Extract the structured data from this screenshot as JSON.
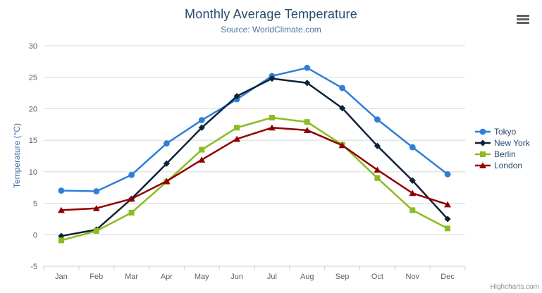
{
  "header": {
    "title": "Monthly Average Temperature",
    "subtitle": "Source: WorldClimate.com"
  },
  "credits": {
    "label": "Highcharts.com"
  },
  "colors": {
    "title": "#274b6d",
    "subtitle": "#4d759e",
    "axis_label": "#606060",
    "y_axis_title": "#4572a7",
    "gridline": "#d8d8d8",
    "axis_line": "#c0d0e0",
    "legend_text": "#274b6d"
  },
  "chart_data": {
    "type": "line",
    "title": "Monthly Average Temperature",
    "subtitle": "Source: WorldClimate.com",
    "xlabel": "",
    "ylabel": "Temperature (°C)",
    "categories": [
      "Jan",
      "Feb",
      "Mar",
      "Apr",
      "May",
      "Jun",
      "Jul",
      "Aug",
      "Sep",
      "Oct",
      "Nov",
      "Dec"
    ],
    "ylim": [
      -5,
      30
    ],
    "ytick_interval": 5,
    "grid": true,
    "legend_position": "right",
    "series": [
      {
        "name": "Tokyo",
        "color": "#2f7ed8",
        "marker": "circle",
        "values": [
          7.0,
          6.9,
          9.5,
          14.5,
          18.2,
          21.5,
          25.2,
          26.5,
          23.3,
          18.3,
          13.9,
          9.6
        ]
      },
      {
        "name": "New York",
        "color": "#0d233a",
        "marker": "diamond",
        "values": [
          -0.2,
          0.8,
          5.7,
          11.3,
          17.0,
          22.0,
          24.8,
          24.1,
          20.1,
          14.1,
          8.6,
          2.5
        ]
      },
      {
        "name": "Berlin",
        "color": "#8bbc21",
        "marker": "square",
        "values": [
          -0.9,
          0.6,
          3.5,
          8.4,
          13.5,
          17.0,
          18.6,
          17.9,
          14.3,
          9.0,
          3.9,
          1.0
        ]
      },
      {
        "name": "London",
        "color": "#910000",
        "marker": "triangle",
        "values": [
          3.9,
          4.2,
          5.7,
          8.5,
          11.9,
          15.2,
          17.0,
          16.6,
          14.2,
          10.3,
          6.6,
          4.8
        ]
      }
    ]
  }
}
